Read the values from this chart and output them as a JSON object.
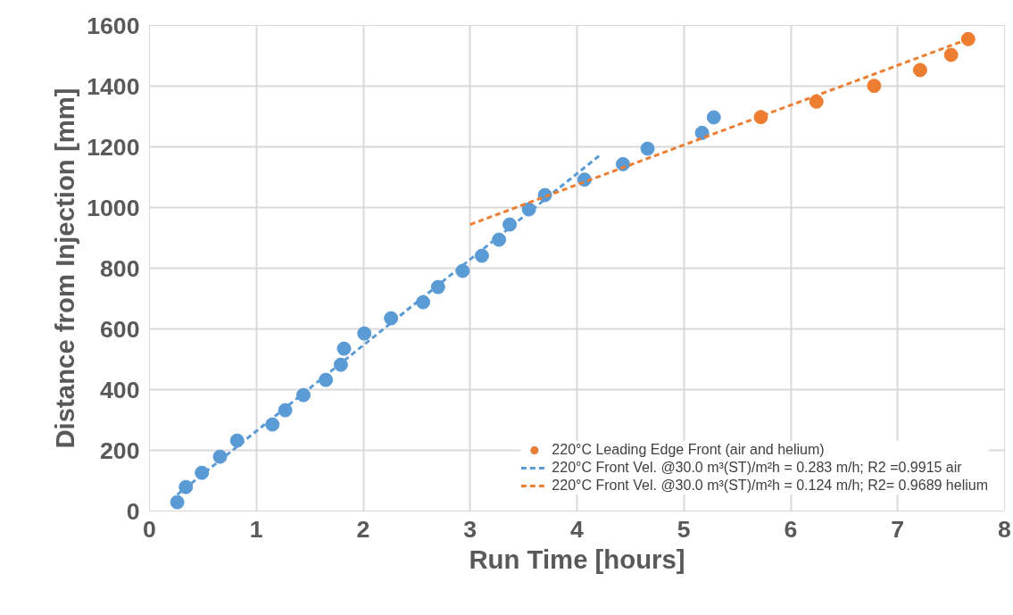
{
  "chart_data": {
    "type": "scatter",
    "xlabel": "Run Time [hours]",
    "ylabel": "Distance from Injection [mm]",
    "xlim": [
      0,
      8
    ],
    "ylim": [
      0,
      1600
    ],
    "xticks": [
      0,
      1,
      2,
      3,
      4,
      5,
      6,
      7,
      8
    ],
    "yticks": [
      0,
      200,
      400,
      600,
      800,
      1000,
      1200,
      1400,
      1600
    ],
    "grid": true,
    "legend": "bottom right",
    "marker": "circle",
    "series": [
      {
        "name": "220°C Leading Edge Front (air and helium)",
        "color": "#5b9bd5",
        "x": [
          0.26,
          0.34,
          0.49,
          0.66,
          0.82,
          1.15,
          1.27,
          1.44,
          1.65,
          1.79,
          1.82,
          2.01,
          2.26,
          2.56,
          2.7,
          2.93,
          3.11,
          3.27,
          3.37,
          3.55,
          3.7,
          4.07,
          4.43,
          4.66,
          5.17,
          5.28
        ],
        "values": [
          29,
          79,
          126,
          179,
          232,
          285,
          332,
          382,
          432,
          482,
          535,
          585,
          635,
          688,
          738,
          791,
          841,
          894,
          944,
          994,
          1041,
          1092,
          1143,
          1194,
          1246,
          1297
        ]
      },
      {
        "color": "#ed7d31",
        "x": [
          5.72,
          6.24,
          6.78,
          7.21,
          7.5,
          7.66
        ],
        "values": [
          1298,
          1349,
          1401,
          1453,
          1503,
          1555
        ]
      },
      {
        "type": "line",
        "name": "220°C Front Vel. @30.0 m³(ST)/m²h = 0.283 m/h; R2 =0.9915 air",
        "color": "#5b9bd5",
        "line_style": "dashed",
        "marker": "none",
        "x": [
          0.26,
          4.22
        ],
        "values": [
          54,
          1174
        ]
      },
      {
        "type": "line",
        "name": "220°C Front Vel. @30.0 m³(ST)/m²h = 0.124 m/h; R2= 0.9689 helium",
        "color": "#ed7d31",
        "line_style": "dashed",
        "marker": "none",
        "x": [
          3,
          7.66
        ],
        "values": [
          944,
          1555
        ]
      }
    ]
  }
}
